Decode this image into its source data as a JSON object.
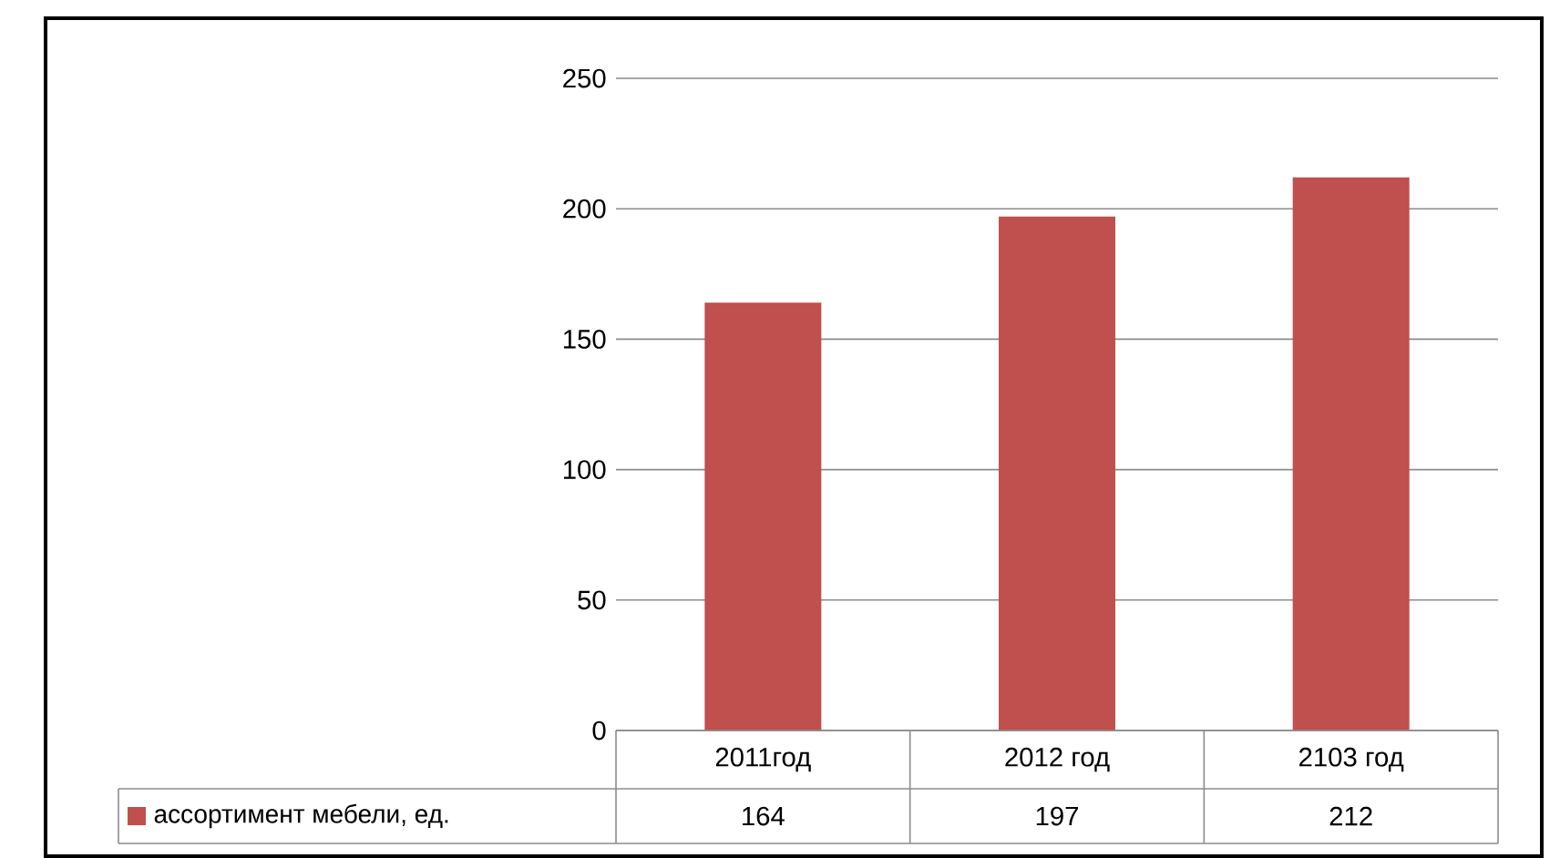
{
  "chart_data": {
    "type": "bar",
    "categories": [
      "2011год",
      "2012 год",
      "2103 год"
    ],
    "series": [
      {
        "name": "ассортимент мебели, ед.",
        "color": "#c0504d",
        "values": [
          164,
          197,
          212
        ]
      }
    ],
    "ylim": [
      0,
      250
    ],
    "yticks": [
      0,
      50,
      100,
      150,
      200,
      250
    ],
    "grid": "y",
    "legend": "bottom",
    "data_labels": true
  }
}
